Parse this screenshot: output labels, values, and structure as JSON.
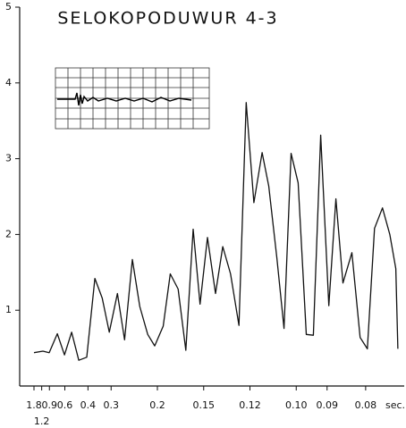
{
  "chart_data": {
    "type": "line",
    "title": "SELOKOPODUWUR 4-3",
    "xlabel": "sec.",
    "xscale": "reciprocal",
    "xlim": [
      25,
      0.072
    ],
    "ylim": [
      0,
      5
    ],
    "yticks": [
      1,
      2,
      3,
      4,
      5
    ],
    "xticks": [
      1.8,
      1.2,
      0.9,
      0.6,
      0.4,
      0.3,
      0.2,
      0.15,
      0.12,
      {
        "value": 0.1,
        "label": "0.10"
      },
      0.09,
      0.08
    ],
    "color": "#111111",
    "x": [
      1.8,
      1.14,
      0.906,
      0.717,
      0.605,
      0.523,
      0.461,
      0.407,
      0.364,
      0.332,
      0.306,
      0.281,
      0.262,
      0.244,
      0.229,
      0.215,
      0.204,
      0.192,
      0.183,
      0.174,
      0.166,
      0.159,
      0.153,
      0.147,
      0.141,
      0.136,
      0.131,
      0.126,
      0.122,
      0.118,
      0.114,
      0.111,
      0.1075,
      0.1046,
      0.1019,
      0.0993,
      0.0965,
      0.0942,
      0.0919,
      0.0895,
      0.0875,
      0.0856,
      0.0833,
      0.0813,
      0.0796,
      0.078,
      0.0763,
      0.0748,
      0.0736,
      0.0732
    ],
    "values": [
      0.44,
      0.46,
      0.44,
      0.69,
      0.41,
      0.71,
      0.34,
      0.38,
      1.42,
      1.16,
      0.71,
      1.22,
      0.61,
      1.67,
      1.05,
      0.68,
      0.53,
      0.79,
      1.48,
      1.28,
      0.47,
      2.07,
      1.08,
      1.96,
      1.22,
      1.84,
      1.48,
      0.8,
      3.74,
      2.42,
      3.08,
      2.64,
      1.69,
      0.76,
      3.07,
      2.68,
      0.68,
      0.67,
      3.31,
      1.06,
      2.47,
      1.36,
      1.76,
      0.64,
      0.49,
      2.08,
      2.35,
      2.0,
      1.55,
      0.49
    ]
  }
}
